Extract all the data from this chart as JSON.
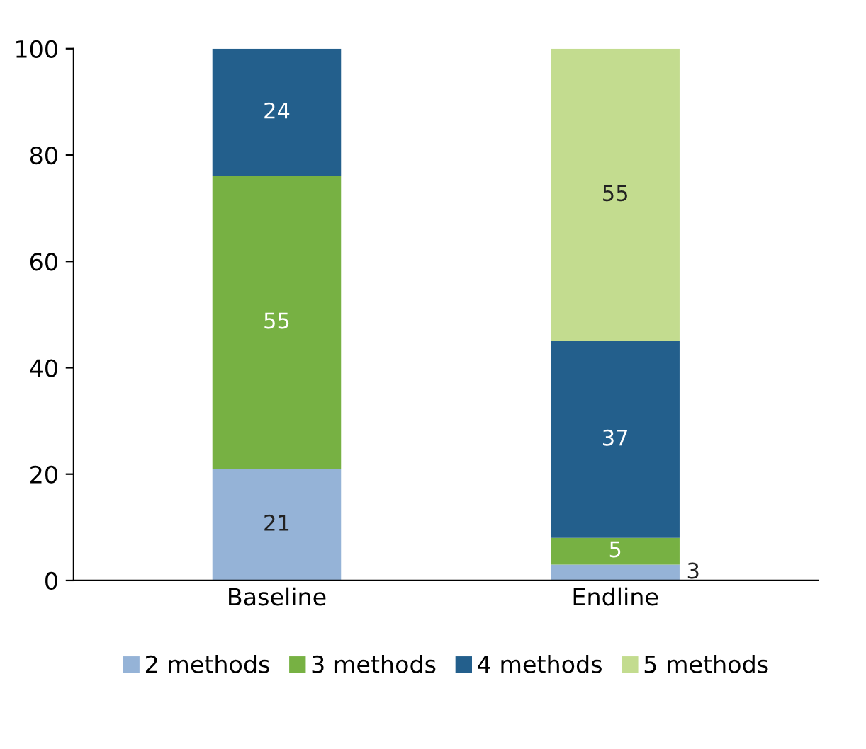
{
  "chart_data": {
    "type": "bar",
    "stacked": true,
    "categories": [
      "Baseline",
      "Endline"
    ],
    "series": [
      {
        "name": "2 methods",
        "color": "#95b3d7",
        "values": [
          21,
          3
        ],
        "value_labels": [
          "21",
          "3"
        ]
      },
      {
        "name": "3 methods",
        "color": "#77b143",
        "values": [
          55,
          5
        ],
        "value_labels": [
          "55",
          "5"
        ]
      },
      {
        "name": "4 methods",
        "color": "#235f8c",
        "values": [
          24,
          37
        ],
        "value_labels": [
          "24",
          "37"
        ]
      },
      {
        "name": "5 methods",
        "color": "#c3dc8f",
        "values": [
          null,
          55
        ],
        "value_labels": [
          null,
          "55"
        ]
      }
    ],
    "ylim": [
      0,
      100
    ],
    "yticks": [
      0,
      20,
      40,
      60,
      80,
      100
    ],
    "grid": false,
    "legend": "bottom"
  }
}
